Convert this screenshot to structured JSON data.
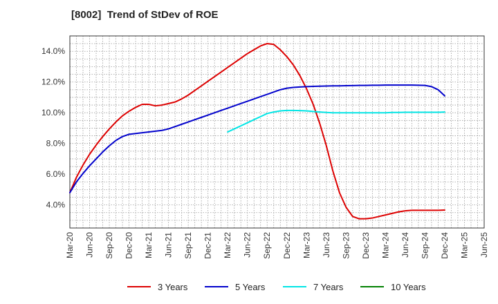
{
  "chart_data": {
    "type": "line",
    "title": "[8002]  Trend of StDev of ROE",
    "xlabel": "",
    "ylabel": "",
    "x_ticks": [
      "Mar-20",
      "Jun-20",
      "Sep-20",
      "Dec-20",
      "Mar-21",
      "Jun-21",
      "Sep-21",
      "Dec-21",
      "Mar-22",
      "Jun-22",
      "Sep-22",
      "Dec-22",
      "Mar-23",
      "Jun-23",
      "Sep-23",
      "Dec-23",
      "Mar-24",
      "Jun-24",
      "Sep-24",
      "Dec-24",
      "Mar-25",
      "Jun-25"
    ],
    "y_ticks": [
      "4.0%",
      "6.0%",
      "8.0%",
      "10.0%",
      "12.0%",
      "14.0%"
    ],
    "y_tick_values": [
      4,
      6,
      8,
      10,
      12,
      14
    ],
    "ylim": [
      2.5,
      15.0
    ],
    "grid": true,
    "legend_position": "bottom",
    "series": [
      {
        "name": "3 Years",
        "color": "#dd0000",
        "points": [
          [
            "Mar-20",
            4.8
          ],
          [
            "Apr-20",
            5.8
          ],
          [
            "May-20",
            6.6
          ],
          [
            "Jun-20",
            7.3
          ],
          [
            "Jul-20",
            7.9
          ],
          [
            "Aug-20",
            8.45
          ],
          [
            "Sep-20",
            8.95
          ],
          [
            "Oct-20",
            9.4
          ],
          [
            "Nov-20",
            9.8
          ],
          [
            "Dec-20",
            10.1
          ],
          [
            "Jan-21",
            10.35
          ],
          [
            "Feb-21",
            10.55
          ],
          [
            "Mar-21",
            10.55
          ],
          [
            "Apr-21",
            10.45
          ],
          [
            "May-21",
            10.5
          ],
          [
            "Jun-21",
            10.6
          ],
          [
            "Jul-21",
            10.7
          ],
          [
            "Aug-21",
            10.9
          ],
          [
            "Sep-21",
            11.15
          ],
          [
            "Oct-21",
            11.45
          ],
          [
            "Nov-21",
            11.75
          ],
          [
            "Dec-21",
            12.05
          ],
          [
            "Jan-22",
            12.35
          ],
          [
            "Feb-22",
            12.65
          ],
          [
            "Mar-22",
            12.95
          ],
          [
            "Apr-22",
            13.25
          ],
          [
            "May-22",
            13.55
          ],
          [
            "Jun-22",
            13.85
          ],
          [
            "Jul-22",
            14.1
          ],
          [
            "Aug-22",
            14.35
          ],
          [
            "Sep-22",
            14.5
          ],
          [
            "Oct-22",
            14.45
          ],
          [
            "Nov-22",
            14.1
          ],
          [
            "Dec-22",
            13.65
          ],
          [
            "Jan-23",
            13.1
          ],
          [
            "Feb-23",
            12.4
          ],
          [
            "Mar-23",
            11.55
          ],
          [
            "Apr-23",
            10.55
          ],
          [
            "May-23",
            9.3
          ],
          [
            "Jun-23",
            7.85
          ],
          [
            "Jul-23",
            6.2
          ],
          [
            "Aug-23",
            4.8
          ],
          [
            "Sep-23",
            3.85
          ],
          [
            "Oct-23",
            3.25
          ],
          [
            "Nov-23",
            3.1
          ],
          [
            "Dec-23",
            3.1
          ],
          [
            "Jan-24",
            3.15
          ],
          [
            "Feb-24",
            3.25
          ],
          [
            "Mar-24",
            3.35
          ],
          [
            "Apr-24",
            3.45
          ],
          [
            "May-24",
            3.55
          ],
          [
            "Jun-24",
            3.62
          ],
          [
            "Jul-24",
            3.65
          ],
          [
            "Aug-24",
            3.65
          ],
          [
            "Sep-24",
            3.65
          ],
          [
            "Oct-24",
            3.65
          ],
          [
            "Nov-24",
            3.65
          ],
          [
            "Dec-24",
            3.67
          ]
        ]
      },
      {
        "name": "5 Years",
        "color": "#0000cc",
        "points": [
          [
            "Mar-20",
            4.8
          ],
          [
            "Apr-20",
            5.5
          ],
          [
            "May-20",
            6.05
          ],
          [
            "Jun-20",
            6.55
          ],
          [
            "Jul-20",
            7.0
          ],
          [
            "Aug-20",
            7.45
          ],
          [
            "Sep-20",
            7.85
          ],
          [
            "Oct-20",
            8.2
          ],
          [
            "Nov-20",
            8.45
          ],
          [
            "Dec-20",
            8.6
          ],
          [
            "Jan-21",
            8.65
          ],
          [
            "Feb-21",
            8.7
          ],
          [
            "Mar-21",
            8.75
          ],
          [
            "Apr-21",
            8.8
          ],
          [
            "May-21",
            8.85
          ],
          [
            "Jun-21",
            8.95
          ],
          [
            "Jul-21",
            9.1
          ],
          [
            "Aug-21",
            9.25
          ],
          [
            "Sep-21",
            9.4
          ],
          [
            "Oct-21",
            9.55
          ],
          [
            "Nov-21",
            9.7
          ],
          [
            "Dec-21",
            9.85
          ],
          [
            "Jan-22",
            10.0
          ],
          [
            "Feb-22",
            10.15
          ],
          [
            "Mar-22",
            10.3
          ],
          [
            "Apr-22",
            10.45
          ],
          [
            "May-22",
            10.6
          ],
          [
            "Jun-22",
            10.75
          ],
          [
            "Jul-22",
            10.9
          ],
          [
            "Aug-22",
            11.05
          ],
          [
            "Sep-22",
            11.2
          ],
          [
            "Oct-22",
            11.35
          ],
          [
            "Nov-22",
            11.5
          ],
          [
            "Dec-22",
            11.6
          ],
          [
            "Jan-23",
            11.65
          ],
          [
            "Feb-23",
            11.68
          ],
          [
            "Mar-23",
            11.7
          ],
          [
            "Apr-23",
            11.72
          ],
          [
            "May-23",
            11.73
          ],
          [
            "Jun-23",
            11.74
          ],
          [
            "Jul-23",
            11.75
          ],
          [
            "Aug-23",
            11.75
          ],
          [
            "Sep-23",
            11.76
          ],
          [
            "Oct-23",
            11.77
          ],
          [
            "Nov-23",
            11.78
          ],
          [
            "Dec-23",
            11.78
          ],
          [
            "Jan-24",
            11.79
          ],
          [
            "Feb-24",
            11.79
          ],
          [
            "Mar-24",
            11.8
          ],
          [
            "Apr-24",
            11.8
          ],
          [
            "May-24",
            11.8
          ],
          [
            "Jun-24",
            11.8
          ],
          [
            "Jul-24",
            11.8
          ],
          [
            "Aug-24",
            11.79
          ],
          [
            "Sep-24",
            11.78
          ],
          [
            "Oct-24",
            11.7
          ],
          [
            "Nov-24",
            11.5
          ],
          [
            "Dec-24",
            11.1
          ]
        ]
      },
      {
        "name": "7 Years",
        "color": "#00e5e5",
        "points": [
          [
            "Mar-22",
            8.75
          ],
          [
            "Apr-22",
            8.95
          ],
          [
            "May-22",
            9.15
          ],
          [
            "Jun-22",
            9.35
          ],
          [
            "Jul-22",
            9.55
          ],
          [
            "Aug-22",
            9.75
          ],
          [
            "Sep-22",
            9.95
          ],
          [
            "Oct-22",
            10.05
          ],
          [
            "Nov-22",
            10.12
          ],
          [
            "Dec-22",
            10.15
          ],
          [
            "Jan-23",
            10.15
          ],
          [
            "Feb-23",
            10.14
          ],
          [
            "Mar-23",
            10.12
          ],
          [
            "Apr-23",
            10.08
          ],
          [
            "May-23",
            10.05
          ],
          [
            "Jun-23",
            10.02
          ],
          [
            "Jul-23",
            10.0
          ],
          [
            "Aug-23",
            10.0
          ],
          [
            "Sep-23",
            10.0
          ],
          [
            "Oct-23",
            10.0
          ],
          [
            "Nov-23",
            10.0
          ],
          [
            "Dec-23",
            10.0
          ],
          [
            "Jan-24",
            10.0
          ],
          [
            "Feb-24",
            10.0
          ],
          [
            "Mar-24",
            10.0
          ],
          [
            "Apr-24",
            10.02
          ],
          [
            "May-24",
            10.02
          ],
          [
            "Jun-24",
            10.03
          ],
          [
            "Jul-24",
            10.03
          ],
          [
            "Aug-24",
            10.03
          ],
          [
            "Sep-24",
            10.03
          ],
          [
            "Oct-24",
            10.03
          ],
          [
            "Nov-24",
            10.03
          ],
          [
            "Dec-24",
            10.05
          ]
        ]
      },
      {
        "name": "10 Years",
        "color": "#008000",
        "points": []
      }
    ]
  }
}
